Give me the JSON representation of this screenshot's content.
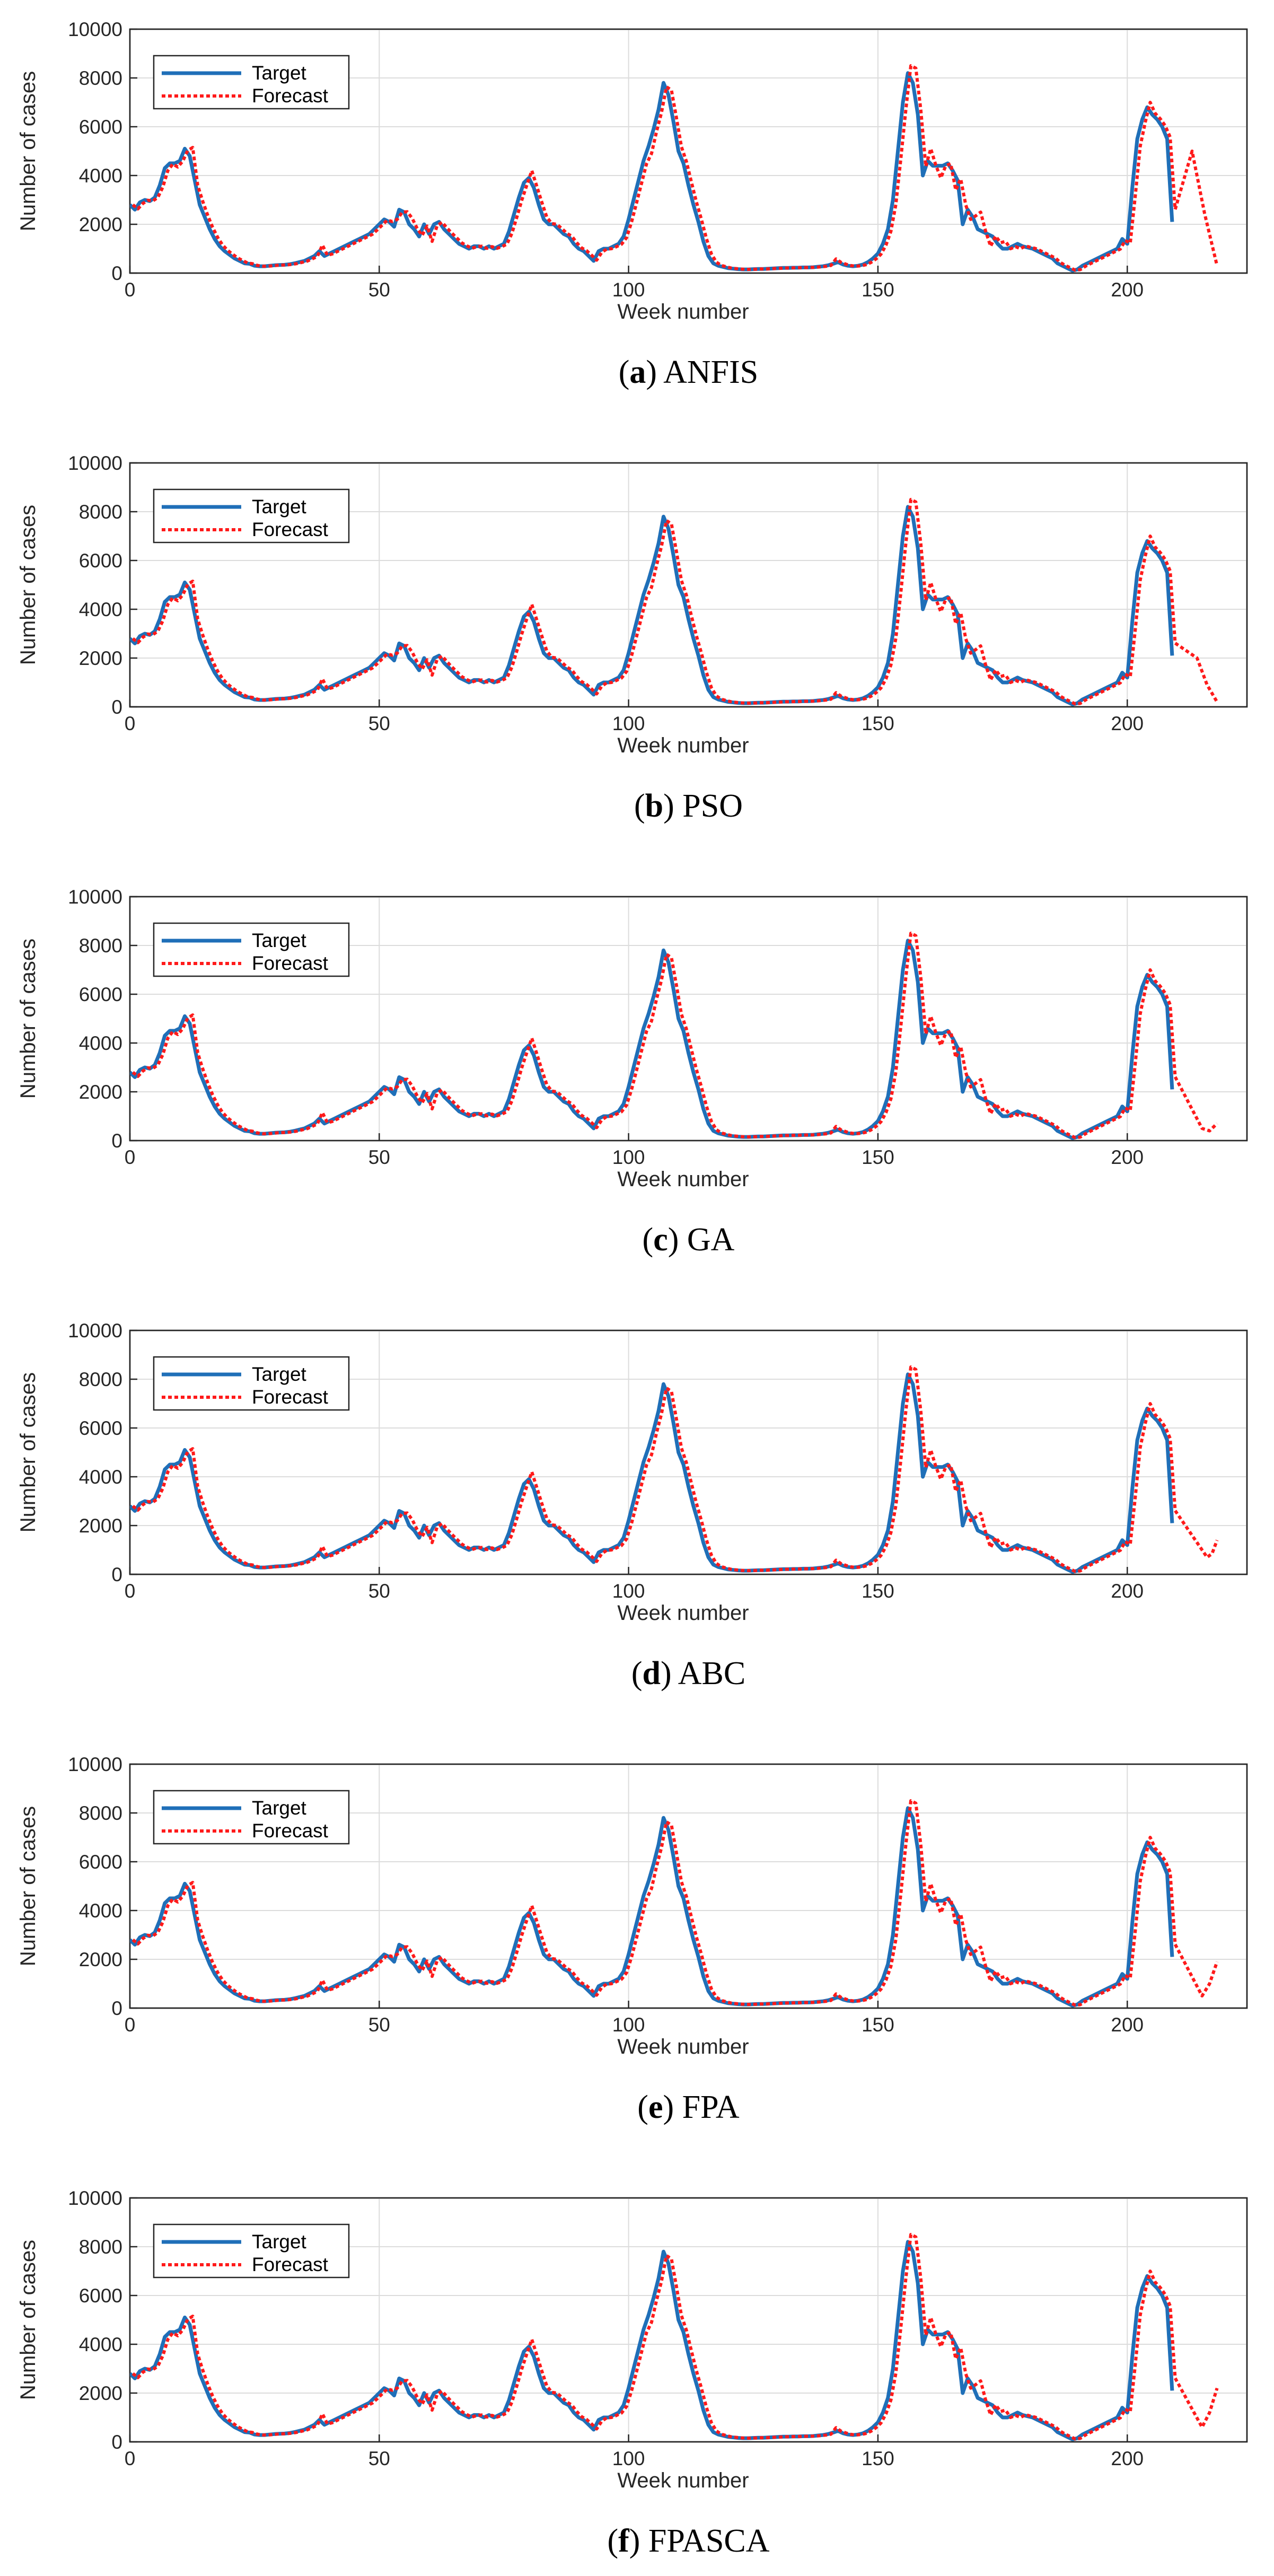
{
  "chart_data": [
    {
      "type": "line",
      "panel": "a",
      "caption_letter": "a",
      "caption_name": "ANFIS",
      "xlabel": "Week number",
      "ylabel": "Number of cases",
      "xlim": [
        0,
        224
      ],
      "ylim": [
        0,
        10000
      ],
      "xticks": [
        0,
        50,
        100,
        150,
        200
      ],
      "yticks": [
        0,
        2000,
        4000,
        6000,
        8000,
        10000
      ],
      "grid": true,
      "legend_position": "top-left",
      "legend": [
        "Target",
        "Forecast"
      ],
      "series": [
        {
          "name": "Target",
          "color": "#1f6fb8"
        },
        {
          "name": "Forecast",
          "color": "#ff1a1a",
          "dash": "dotted",
          "end_x": 218,
          "end_y": 300,
          "dip_x": 213,
          "dip_y": 5000
        }
      ]
    },
    {
      "type": "line",
      "panel": "b",
      "caption_letter": "b",
      "caption_name": "PSO",
      "xlabel": "Week number",
      "ylabel": "Number of cases",
      "xlim": [
        0,
        224
      ],
      "ylim": [
        0,
        10000
      ],
      "xticks": [
        0,
        50,
        100,
        150,
        200
      ],
      "yticks": [
        0,
        2000,
        4000,
        6000,
        8000,
        10000
      ],
      "grid": true,
      "legend_position": "top-left",
      "legend": [
        "Target",
        "Forecast"
      ],
      "series": [
        {
          "name": "Target",
          "color": "#1f6fb8"
        },
        {
          "name": "Forecast",
          "color": "#ff1a1a",
          "dash": "dotted",
          "end_x": 218,
          "end_y": 200,
          "dip_x": 214,
          "dip_y": 2000
        }
      ]
    },
    {
      "type": "line",
      "panel": "c",
      "caption_letter": "c",
      "caption_name": "GA",
      "xlabel": "Week number",
      "ylabel": "Number of cases",
      "xlim": [
        0,
        224
      ],
      "ylim": [
        0,
        10000
      ],
      "xticks": [
        0,
        50,
        100,
        150,
        200
      ],
      "yticks": [
        0,
        2000,
        4000,
        6000,
        8000,
        10000
      ],
      "grid": true,
      "legend_position": "top-left",
      "legend": [
        "Target",
        "Forecast"
      ],
      "series": [
        {
          "name": "Target",
          "color": "#1f6fb8"
        },
        {
          "name": "Forecast",
          "color": "#ff1a1a",
          "dash": "dotted",
          "end_x": 218,
          "end_y": 700,
          "dip_x": 215,
          "dip_y": 500
        }
      ]
    },
    {
      "type": "line",
      "panel": "d",
      "caption_letter": "d",
      "caption_name": "ABC",
      "xlabel": "Week number",
      "ylabel": "Number of cases",
      "xlim": [
        0,
        224
      ],
      "ylim": [
        0,
        10000
      ],
      "xticks": [
        0,
        50,
        100,
        150,
        200
      ],
      "yticks": [
        0,
        2000,
        4000,
        6000,
        8000,
        10000
      ],
      "grid": true,
      "legend_position": "top-left",
      "legend": [
        "Target",
        "Forecast"
      ],
      "series": [
        {
          "name": "Target",
          "color": "#1f6fb8"
        },
        {
          "name": "Forecast",
          "color": "#ff1a1a",
          "dash": "dotted",
          "end_x": 218,
          "end_y": 1400,
          "dip_x": 216,
          "dip_y": 700
        }
      ]
    },
    {
      "type": "line",
      "panel": "e",
      "caption_letter": "e",
      "caption_name": "FPA",
      "xlabel": "Week number",
      "ylabel": "Number of cases",
      "xlim": [
        0,
        224
      ],
      "ylim": [
        0,
        10000
      ],
      "xticks": [
        0,
        50,
        100,
        150,
        200
      ],
      "yticks": [
        0,
        2000,
        4000,
        6000,
        8000,
        10000
      ],
      "grid": true,
      "legend_position": "top-left",
      "legend": [
        "Target",
        "Forecast"
      ],
      "series": [
        {
          "name": "Target",
          "color": "#1f6fb8"
        },
        {
          "name": "Forecast",
          "color": "#ff1a1a",
          "dash": "dotted",
          "end_x": 218,
          "end_y": 1900,
          "dip_x": 215,
          "dip_y": 500
        }
      ]
    },
    {
      "type": "line",
      "panel": "f",
      "caption_letter": "f",
      "caption_name": "FPASCA",
      "xlabel": "Week number",
      "ylabel": "Number of cases",
      "xlim": [
        0,
        224
      ],
      "ylim": [
        0,
        10000
      ],
      "xticks": [
        0,
        50,
        100,
        150,
        200
      ],
      "yticks": [
        0,
        2000,
        4000,
        6000,
        8000,
        10000
      ],
      "grid": true,
      "legend_position": "top-left",
      "legend": [
        "Target",
        "Forecast"
      ],
      "series": [
        {
          "name": "Target",
          "color": "#1f6fb8"
        },
        {
          "name": "Forecast",
          "color": "#ff1a1a",
          "dash": "dotted",
          "end_x": 218,
          "end_y": 2200,
          "dip_x": 215,
          "dip_y": 600
        }
      ]
    }
  ],
  "target_series": [
    [
      0,
      2800
    ],
    [
      1,
      2600
    ],
    [
      2,
      2900
    ],
    [
      3,
      3000
    ],
    [
      4,
      2950
    ],
    [
      5,
      3100
    ],
    [
      6,
      3600
    ],
    [
      7,
      4300
    ],
    [
      8,
      4500
    ],
    [
      9,
      4500
    ],
    [
      10,
      4600
    ],
    [
      11,
      5100
    ],
    [
      12,
      4800
    ],
    [
      13,
      3800
    ],
    [
      14,
      2800
    ],
    [
      15,
      2300
    ],
    [
      16,
      1800
    ],
    [
      17,
      1400
    ],
    [
      18,
      1100
    ],
    [
      19,
      900
    ],
    [
      20,
      750
    ],
    [
      21,
      600
    ],
    [
      22,
      500
    ],
    [
      23,
      400
    ],
    [
      24,
      380
    ],
    [
      25,
      300
    ],
    [
      26,
      280
    ],
    [
      27,
      280
    ],
    [
      28,
      300
    ],
    [
      29,
      320
    ],
    [
      30,
      330
    ],
    [
      31,
      340
    ],
    [
      32,
      360
    ],
    [
      33,
      400
    ],
    [
      34,
      450
    ],
    [
      35,
      500
    ],
    [
      36,
      600
    ],
    [
      37,
      700
    ],
    [
      38,
      900
    ],
    [
      39,
      700
    ],
    [
      40,
      800
    ],
    [
      41,
      900
    ],
    [
      42,
      1000
    ],
    [
      43,
      1100
    ],
    [
      44,
      1200
    ],
    [
      45,
      1300
    ],
    [
      46,
      1400
    ],
    [
      47,
      1500
    ],
    [
      48,
      1600
    ],
    [
      49,
      1800
    ],
    [
      50,
      2000
    ],
    [
      51,
      2200
    ],
    [
      52,
      2100
    ],
    [
      53,
      1900
    ],
    [
      54,
      2600
    ],
    [
      55,
      2500
    ],
    [
      56,
      2000
    ],
    [
      57,
      1800
    ],
    [
      58,
      1500
    ],
    [
      59,
      2000
    ],
    [
      60,
      1600
    ],
    [
      61,
      2000
    ],
    [
      62,
      2100
    ],
    [
      63,
      1800
    ],
    [
      64,
      1600
    ],
    [
      65,
      1400
    ],
    [
      66,
      1200
    ],
    [
      67,
      1100
    ],
    [
      68,
      1000
    ],
    [
      69,
      1100
    ],
    [
      70,
      1100
    ],
    [
      71,
      1000
    ],
    [
      72,
      1100
    ],
    [
      73,
      1000
    ],
    [
      74,
      1100
    ],
    [
      75,
      1200
    ],
    [
      76,
      1700
    ],
    [
      77,
      2400
    ],
    [
      78,
      3100
    ],
    [
      79,
      3700
    ],
    [
      80,
      3900
    ],
    [
      81,
      3500
    ],
    [
      82,
      2800
    ],
    [
      83,
      2200
    ],
    [
      84,
      2000
    ],
    [
      85,
      2000
    ],
    [
      86,
      1800
    ],
    [
      87,
      1600
    ],
    [
      88,
      1500
    ],
    [
      89,
      1200
    ],
    [
      90,
      1000
    ],
    [
      91,
      900
    ],
    [
      92,
      700
    ],
    [
      93,
      500
    ],
    [
      94,
      900
    ],
    [
      95,
      1000
    ],
    [
      96,
      1000
    ],
    [
      97,
      1100
    ],
    [
      98,
      1200
    ],
    [
      99,
      1500
    ],
    [
      100,
      2200
    ],
    [
      101,
      3000
    ],
    [
      102,
      3800
    ],
    [
      103,
      4600
    ],
    [
      104,
      5200
    ],
    [
      105,
      5900
    ],
    [
      106,
      6700
    ],
    [
      107,
      7800
    ],
    [
      108,
      7300
    ],
    [
      109,
      6200
    ],
    [
      110,
      5000
    ],
    [
      111,
      4500
    ],
    [
      112,
      3600
    ],
    [
      113,
      2800
    ],
    [
      114,
      2100
    ],
    [
      115,
      1300
    ],
    [
      116,
      700
    ],
    [
      117,
      400
    ],
    [
      118,
      300
    ],
    [
      119,
      250
    ],
    [
      120,
      200
    ],
    [
      121,
      180
    ],
    [
      122,
      160
    ],
    [
      123,
      150
    ],
    [
      124,
      150
    ],
    [
      125,
      160
    ],
    [
      126,
      170
    ],
    [
      127,
      170
    ],
    [
      128,
      180
    ],
    [
      129,
      190
    ],
    [
      130,
      200
    ],
    [
      131,
      210
    ],
    [
      132,
      210
    ],
    [
      133,
      220
    ],
    [
      134,
      220
    ],
    [
      135,
      230
    ],
    [
      136,
      230
    ],
    [
      137,
      240
    ],
    [
      138,
      260
    ],
    [
      139,
      280
    ],
    [
      140,
      320
    ],
    [
      141,
      380
    ],
    [
      142,
      450
    ],
    [
      143,
      350
    ],
    [
      144,
      300
    ],
    [
      145,
      280
    ],
    [
      146,
      300
    ],
    [
      147,
      350
    ],
    [
      148,
      450
    ],
    [
      149,
      600
    ],
    [
      150,
      800
    ],
    [
      151,
      1200
    ],
    [
      152,
      1800
    ],
    [
      153,
      3000
    ],
    [
      154,
      5000
    ],
    [
      155,
      7000
    ],
    [
      156,
      8200
    ],
    [
      157,
      7800
    ],
    [
      158,
      6500
    ],
    [
      159,
      4000
    ],
    [
      160,
      4600
    ],
    [
      161,
      4400
    ],
    [
      162,
      4400
    ],
    [
      163,
      4400
    ],
    [
      164,
      4500
    ],
    [
      165,
      4200
    ],
    [
      166,
      3800
    ],
    [
      167,
      2000
    ],
    [
      168,
      2600
    ],
    [
      169,
      2300
    ],
    [
      170,
      1800
    ],
    [
      171,
      1700
    ],
    [
      172,
      1600
    ],
    [
      173,
      1500
    ],
    [
      174,
      1200
    ],
    [
      175,
      1000
    ],
    [
      176,
      1000
    ],
    [
      177,
      1100
    ],
    [
      178,
      1200
    ],
    [
      179,
      1100
    ],
    [
      180,
      1050
    ],
    [
      181,
      1000
    ],
    [
      182,
      900
    ],
    [
      183,
      800
    ],
    [
      184,
      700
    ],
    [
      185,
      600
    ],
    [
      186,
      400
    ],
    [
      187,
      300
    ],
    [
      188,
      200
    ],
    [
      189,
      100
    ],
    [
      190,
      150
    ],
    [
      191,
      300
    ],
    [
      192,
      400
    ],
    [
      193,
      500
    ],
    [
      194,
      600
    ],
    [
      195,
      700
    ],
    [
      196,
      800
    ],
    [
      197,
      900
    ],
    [
      198,
      1000
    ],
    [
      199,
      1400
    ],
    [
      200,
      1200
    ],
    [
      201,
      3500
    ],
    [
      202,
      5500
    ],
    [
      203,
      6300
    ],
    [
      204,
      6800
    ],
    [
      205,
      6500
    ],
    [
      206,
      6300
    ],
    [
      207,
      6000
    ],
    [
      208,
      5500
    ],
    [
      209,
      2100
    ]
  ],
  "forecast_offsets": [
    {
      "at": 5,
      "d": 0
    },
    {
      "at": 9,
      "d": -150
    },
    {
      "at": 12,
      "d": 350
    },
    {
      "at": 13,
      "d": -200
    },
    {
      "at": 38,
      "d": 250
    },
    {
      "at": 53,
      "d": 300
    },
    {
      "at": 56,
      "d": 250
    },
    {
      "at": 60,
      "d": -300
    },
    {
      "at": 80,
      "d": 300
    },
    {
      "at": 104,
      "d": -300
    },
    {
      "at": 108,
      "d": 200
    },
    {
      "at": 141,
      "d": 200
    },
    {
      "at": 156,
      "d": 300
    },
    {
      "at": 157,
      "d": 600
    },
    {
      "at": 160,
      "d": 500
    },
    {
      "at": 162,
      "d": -500
    },
    {
      "at": 165,
      "d": -800
    },
    {
      "at": 167,
      "d": 800
    },
    {
      "at": 168,
      "d": -400
    },
    {
      "at": 170,
      "d": 700
    },
    {
      "at": 172,
      "d": -500
    },
    {
      "at": 175,
      "d": 300
    },
    {
      "at": 178,
      "d": -200
    },
    {
      "at": 204,
      "d": 200
    }
  ]
}
